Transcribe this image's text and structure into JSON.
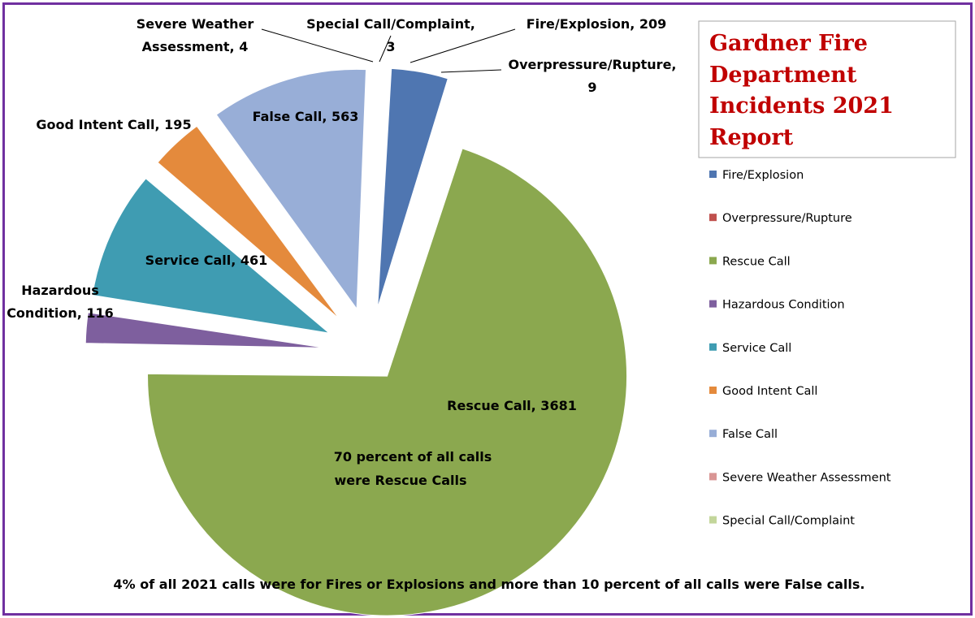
{
  "chart_data": {
    "type": "pie",
    "title_lines": [
      "Gardner Fire",
      "Department",
      "Incidents 2021",
      "Report"
    ],
    "series": [
      {
        "name": "",
        "slices": [
          {
            "label": "Fire/Explosion",
            "value": 209,
            "color": "#4F76B1",
            "label_lines": [
              "Fire/Explosion, 209"
            ]
          },
          {
            "label": "Overpressure/Rupture",
            "value": 9,
            "color": "#C0504D",
            "label_lines": [
              "Overpressure/Rupture,",
              "9"
            ]
          },
          {
            "label": "Rescue Call",
            "value": 3681,
            "color": "#8BA84F",
            "label_lines": [
              "Rescue Call, 3681"
            ]
          },
          {
            "label": "Hazardous Condition",
            "value": 116,
            "color": "#7E5F9E",
            "label_lines": [
              "Hazardous",
              "Condition, 116"
            ]
          },
          {
            "label": "Service Call",
            "value": 461,
            "color": "#3F9CB2",
            "label_lines": [
              "Service Call, 461"
            ]
          },
          {
            "label": "Good Intent Call",
            "value": 195,
            "color": "#E48A3C",
            "label_lines": [
              "Good Intent Call, 195"
            ]
          },
          {
            "label": "False Call",
            "value": 563,
            "color": "#98AED7",
            "label_lines": [
              "False Call, 563"
            ]
          },
          {
            "label": "Severe Weather Assessment",
            "value": 4,
            "color": "#D99594",
            "label_lines": [
              "Severe Weather",
              "Assessment, 4"
            ]
          },
          {
            "label": "Special Call/Complaint",
            "value": 3,
            "color": "#C3D69B",
            "label_lines": [
              "Special Call/Complaint,",
              "3"
            ]
          }
        ]
      }
    ],
    "legend": {
      "position": "right",
      "entries": [
        "Fire/Explosion",
        "Overpressure/Rupture",
        "Rescue Call",
        "Hazardous Condition",
        "Service Call",
        "Good Intent Call",
        "False Call",
        "Severe Weather Assessment",
        "Special Call/Complaint"
      ]
    },
    "annotations": [
      "70 percent of all calls",
      "were Rescue Calls"
    ],
    "footnote": "4% of all 2021 calls were for Fires or Explosions and more than 10 percent of all calls were False calls."
  }
}
